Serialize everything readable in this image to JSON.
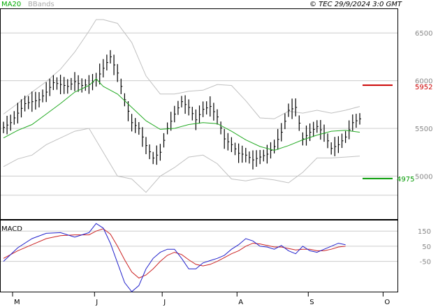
{
  "header": {
    "ma_label": "MA20",
    "bbands_label": "BBands",
    "copyright": "© TEC 29/9/2024 3:0 GMT"
  },
  "macd_label": "MACD",
  "price_ticks": [
    "6500",
    "6000",
    "5500",
    "5000"
  ],
  "macd_ticks": [
    "150",
    "50",
    "-50"
  ],
  "month_labels": [
    "M",
    "J",
    "J",
    "A",
    "S",
    "O"
  ],
  "levels": {
    "resistance": {
      "label": "5952",
      "value": 5952,
      "color": "#cc0000"
    },
    "support": {
      "label": "4975",
      "value": 4975,
      "color": "#009900"
    }
  },
  "colors": {
    "ma": "#22aa22",
    "bbands": "#c0c0c0",
    "bars": "#000000",
    "macd_line": "#2222cc",
    "signal_line": "#cc2222",
    "grid": "#cccccc",
    "header_ma": "#00aa00"
  },
  "chart_data": {
    "type": "line",
    "price_panel": {
      "ylim": [
        4550,
        6750
      ],
      "x_range": [
        0,
        100
      ],
      "price": [
        [
          0,
          5510
        ],
        [
          2,
          5560
        ],
        [
          4,
          5660
        ],
        [
          6,
          5760
        ],
        [
          8,
          5780
        ],
        [
          10,
          5800
        ],
        [
          12,
          5880
        ],
        [
          14,
          5980
        ],
        [
          16,
          5960
        ],
        [
          18,
          5940
        ],
        [
          20,
          5990
        ],
        [
          22,
          5950
        ],
        [
          24,
          5960
        ],
        [
          26,
          6010
        ],
        [
          28,
          6130
        ],
        [
          30,
          6250
        ],
        [
          32,
          6080
        ],
        [
          34,
          5800
        ],
        [
          36,
          5560
        ],
        [
          38,
          5500
        ],
        [
          40,
          5320
        ],
        [
          42,
          5190
        ],
        [
          44,
          5250
        ],
        [
          46,
          5500
        ],
        [
          48,
          5650
        ],
        [
          50,
          5780
        ],
        [
          52,
          5720
        ],
        [
          54,
          5590
        ],
        [
          56,
          5700
        ],
        [
          58,
          5730
        ],
        [
          60,
          5620
        ],
        [
          62,
          5390
        ],
        [
          64,
          5330
        ],
        [
          66,
          5240
        ],
        [
          68,
          5220
        ],
        [
          70,
          5170
        ],
        [
          72,
          5200
        ],
        [
          74,
          5230
        ],
        [
          76,
          5310
        ],
        [
          78,
          5460
        ],
        [
          80,
          5690
        ],
        [
          82,
          5720
        ],
        [
          84,
          5390
        ],
        [
          86,
          5460
        ],
        [
          88,
          5520
        ],
        [
          90,
          5450
        ],
        [
          92,
          5290
        ],
        [
          94,
          5330
        ],
        [
          96,
          5410
        ],
        [
          98,
          5560
        ],
        [
          100,
          5600
        ]
      ],
      "ma20": [
        [
          0,
          5400
        ],
        [
          4,
          5480
        ],
        [
          8,
          5540
        ],
        [
          12,
          5650
        ],
        [
          16,
          5760
        ],
        [
          20,
          5880
        ],
        [
          24,
          5950
        ],
        [
          26,
          6020
        ],
        [
          28,
          5940
        ],
        [
          32,
          5860
        ],
        [
          36,
          5720
        ],
        [
          40,
          5580
        ],
        [
          44,
          5490
        ],
        [
          48,
          5500
        ],
        [
          52,
          5540
        ],
        [
          56,
          5560
        ],
        [
          60,
          5550
        ],
        [
          64,
          5470
        ],
        [
          68,
          5380
        ],
        [
          72,
          5310
        ],
        [
          76,
          5270
        ],
        [
          80,
          5320
        ],
        [
          84,
          5380
        ],
        [
          88,
          5430
        ],
        [
          92,
          5470
        ],
        [
          96,
          5480
        ],
        [
          100,
          5460
        ]
      ],
      "bband_upper": [
        [
          0,
          5650
        ],
        [
          4,
          5760
        ],
        [
          8,
          5880
        ],
        [
          12,
          5990
        ],
        [
          16,
          6120
        ],
        [
          20,
          6300
        ],
        [
          24,
          6520
        ],
        [
          26,
          6640
        ],
        [
          28,
          6640
        ],
        [
          32,
          6600
        ],
        [
          36,
          6400
        ],
        [
          40,
          6050
        ],
        [
          44,
          5860
        ],
        [
          48,
          5860
        ],
        [
          52,
          5890
        ],
        [
          56,
          5900
        ],
        [
          60,
          5960
        ],
        [
          64,
          5950
        ],
        [
          68,
          5790
        ],
        [
          72,
          5610
        ],
        [
          76,
          5600
        ],
        [
          80,
          5680
        ],
        [
          84,
          5660
        ],
        [
          88,
          5690
        ],
        [
          92,
          5660
        ],
        [
          96,
          5690
        ],
        [
          100,
          5730
        ]
      ],
      "bband_lower": [
        [
          0,
          5100
        ],
        [
          4,
          5180
        ],
        [
          8,
          5220
        ],
        [
          12,
          5330
        ],
        [
          16,
          5400
        ],
        [
          20,
          5470
        ],
        [
          24,
          5500
        ],
        [
          28,
          5250
        ],
        [
          32,
          5000
        ],
        [
          36,
          4970
        ],
        [
          40,
          4830
        ],
        [
          44,
          5000
        ],
        [
          48,
          5090
        ],
        [
          52,
          5200
        ],
        [
          56,
          5220
        ],
        [
          60,
          5130
        ],
        [
          64,
          4970
        ],
        [
          68,
          4950
        ],
        [
          72,
          4980
        ],
        [
          76,
          4960
        ],
        [
          80,
          4930
        ],
        [
          84,
          5040
        ],
        [
          88,
          5190
        ],
        [
          92,
          5190
        ],
        [
          96,
          5200
        ],
        [
          100,
          5210
        ]
      ]
    },
    "macd_panel": {
      "ylim": [
        -250,
        220
      ],
      "macd": [
        [
          0,
          -50
        ],
        [
          4,
          40
        ],
        [
          8,
          100
        ],
        [
          12,
          135
        ],
        [
          16,
          140
        ],
        [
          20,
          110
        ],
        [
          24,
          140
        ],
        [
          26,
          200
        ],
        [
          28,
          170
        ],
        [
          30,
          70
        ],
        [
          32,
          -60
        ],
        [
          34,
          -190
        ],
        [
          36,
          -250
        ],
        [
          38,
          -210
        ],
        [
          40,
          -100
        ],
        [
          42,
          -30
        ],
        [
          44,
          10
        ],
        [
          46,
          30
        ],
        [
          48,
          30
        ],
        [
          50,
          -30
        ],
        [
          52,
          -100
        ],
        [
          54,
          -100
        ],
        [
          56,
          -60
        ],
        [
          58,
          -45
        ],
        [
          60,
          -30
        ],
        [
          62,
          -10
        ],
        [
          64,
          30
        ],
        [
          66,
          60
        ],
        [
          68,
          100
        ],
        [
          70,
          85
        ],
        [
          72,
          50
        ],
        [
          74,
          45
        ],
        [
          76,
          30
        ],
        [
          78,
          55
        ],
        [
          80,
          20
        ],
        [
          82,
          0
        ],
        [
          84,
          50
        ],
        [
          86,
          20
        ],
        [
          88,
          10
        ],
        [
          90,
          30
        ],
        [
          92,
          50
        ],
        [
          94,
          70
        ],
        [
          96,
          60
        ]
      ],
      "signal": [
        [
          0,
          -30
        ],
        [
          4,
          20
        ],
        [
          8,
          60
        ],
        [
          12,
          100
        ],
        [
          16,
          120
        ],
        [
          20,
          125
        ],
        [
          24,
          125
        ],
        [
          26,
          150
        ],
        [
          28,
          165
        ],
        [
          30,
          130
        ],
        [
          32,
          50
        ],
        [
          34,
          -40
        ],
        [
          36,
          -120
        ],
        [
          38,
          -160
        ],
        [
          40,
          -140
        ],
        [
          42,
          -100
        ],
        [
          44,
          -50
        ],
        [
          46,
          -10
        ],
        [
          48,
          10
        ],
        [
          50,
          -5
        ],
        [
          52,
          -40
        ],
        [
          54,
          -70
        ],
        [
          56,
          -80
        ],
        [
          58,
          -70
        ],
        [
          60,
          -50
        ],
        [
          62,
          -25
        ],
        [
          64,
          0
        ],
        [
          66,
          20
        ],
        [
          68,
          50
        ],
        [
          70,
          70
        ],
        [
          72,
          65
        ],
        [
          74,
          55
        ],
        [
          76,
          45
        ],
        [
          78,
          45
        ],
        [
          80,
          35
        ],
        [
          82,
          25
        ],
        [
          84,
          30
        ],
        [
          86,
          30
        ],
        [
          88,
          20
        ],
        [
          90,
          20
        ],
        [
          92,
          30
        ],
        [
          94,
          45
        ],
        [
          96,
          50
        ]
      ],
      "hlines": [
        150,
        50,
        -50
      ]
    }
  }
}
